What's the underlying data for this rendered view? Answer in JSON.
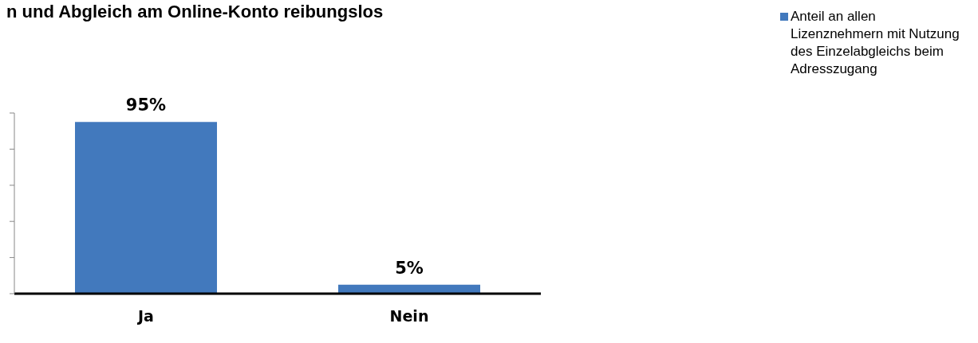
{
  "chart_data": {
    "type": "bar",
    "title": "n und Abgleich am Online-Konto reibungslos",
    "categories": [
      "Ja",
      "Nein"
    ],
    "series": [
      {
        "name": "Anteil an allen Lizenznehmern mit Nutzung des Einzelabgleichs beim Adresszugang",
        "color": "#4279bd",
        "values": [
          95,
          5
        ],
        "value_labels": [
          "95%",
          "5%"
        ]
      }
    ],
    "ylim": [
      0,
      100
    ],
    "yticks": [
      {
        "value": 0,
        "label": null
      },
      {
        "value": 20,
        "label": null
      },
      {
        "value": 40,
        "label": null
      },
      {
        "value": 60,
        "label": null
      },
      {
        "value": 80,
        "label": null
      },
      {
        "value": 100,
        "label": null
      }
    ],
    "tick_labels": "x",
    "legend": "top right",
    "grid": false
  }
}
